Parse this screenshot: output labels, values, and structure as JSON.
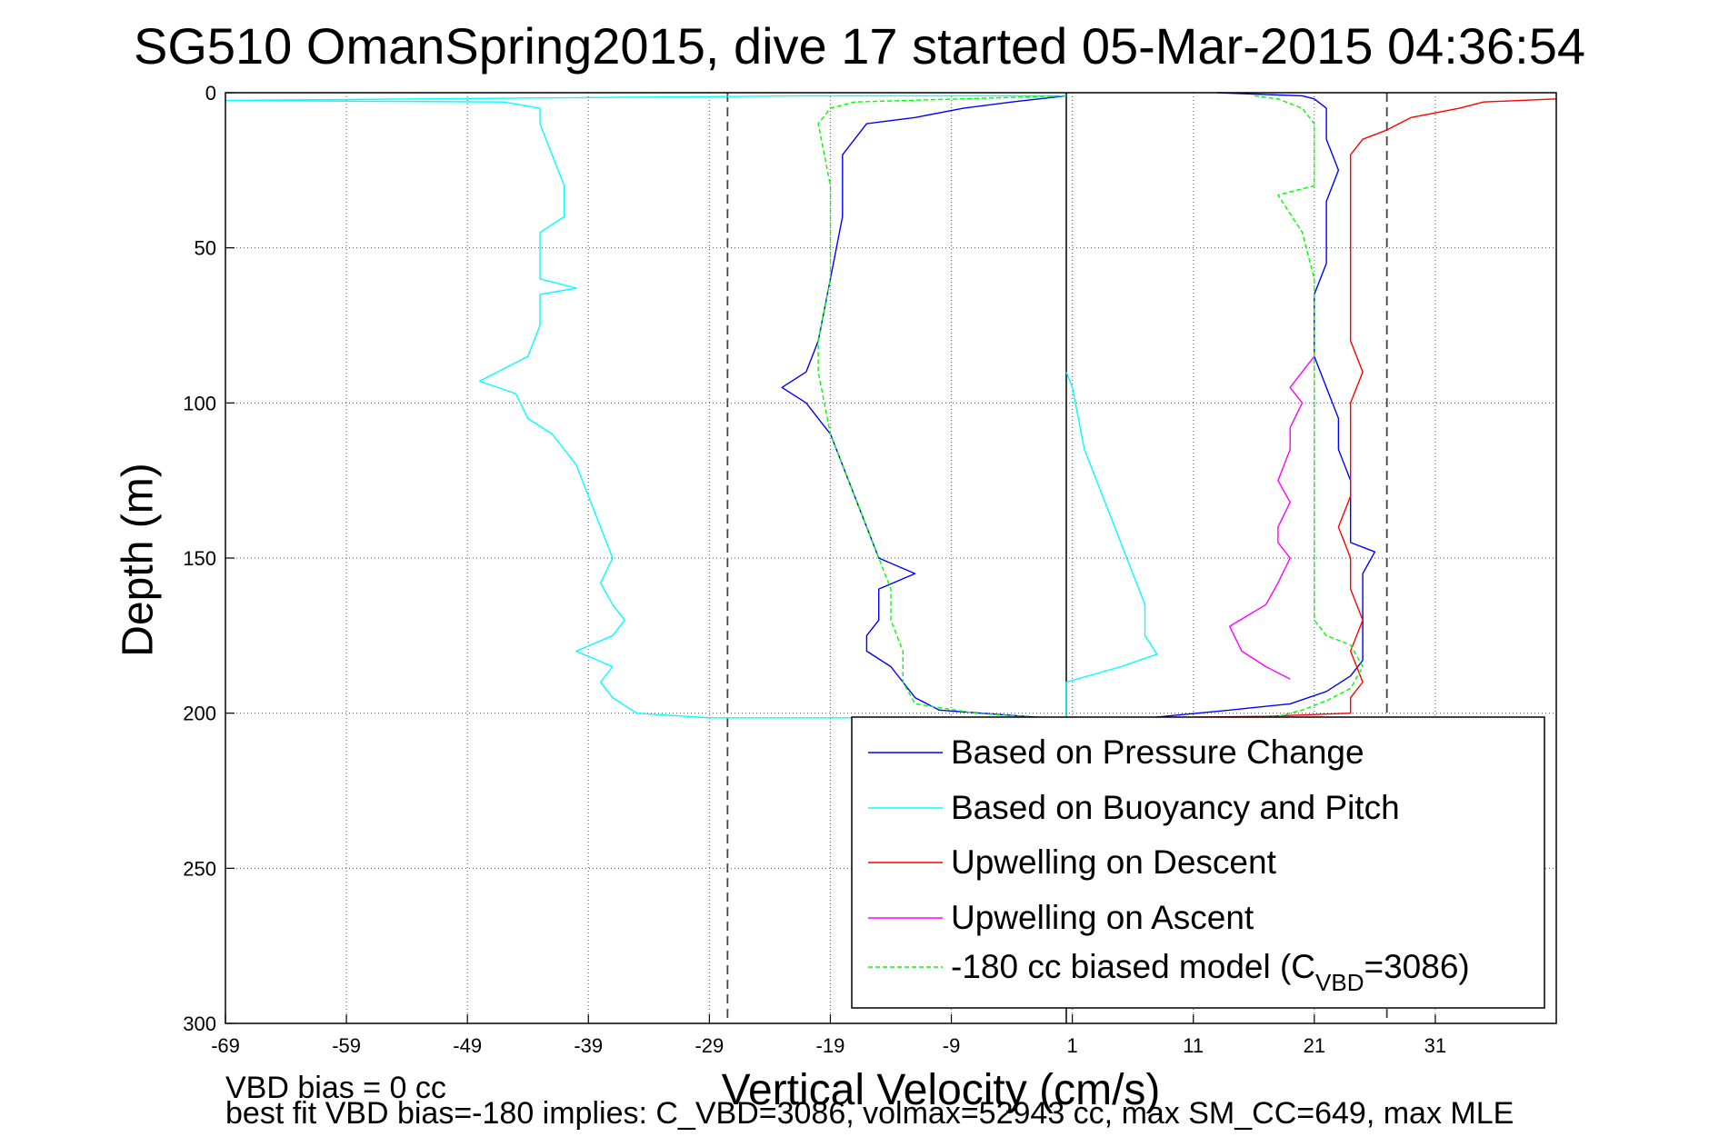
{
  "chart_data": {
    "type": "line",
    "title": "SG510 OmanSpring2015, dive 17 started 05-Mar-2015 04:36:54",
    "xlabel": "Vertical Velocity (cm/s)",
    "ylabel": "Depth (m)",
    "xlim": [
      -69,
      41
    ],
    "ylim": [
      300,
      0
    ],
    "y_reversed": true,
    "grid": true,
    "legend_position": "bottom-right",
    "x_ticks": [
      -69,
      -59,
      -49,
      -39,
      -29,
      -19,
      -9,
      1,
      11,
      21,
      31
    ],
    "y_ticks": [
      0,
      50,
      100,
      150,
      200,
      250,
      300
    ],
    "x_tick_labels": [
      "-69",
      "-59",
      "-49",
      "-39",
      "-29",
      "-19",
      "-9",
      "1",
      "11",
      "21",
      "31"
    ],
    "y_tick_labels": [
      "0",
      "50",
      "100",
      "150",
      "200",
      "250",
      "300"
    ],
    "reference_lines": {
      "vertical_solid_x": 0.5,
      "vertical_dashed_x": [
        -27.5,
        27
      ]
    },
    "series": [
      {
        "name": "Based on Pressure Change",
        "color": "#0000ff",
        "style": "solid",
        "points": [
          [
            0.5,
            1
          ],
          [
            -4,
            3
          ],
          [
            -8,
            5
          ],
          [
            -12,
            8
          ],
          [
            -16,
            10
          ],
          [
            -17,
            15
          ],
          [
            -18,
            20
          ],
          [
            -18,
            30
          ],
          [
            -18,
            40
          ],
          [
            -18.5,
            50
          ],
          [
            -19,
            60
          ],
          [
            -19.5,
            70
          ],
          [
            -20,
            80
          ],
          [
            -21,
            90
          ],
          [
            -23,
            95
          ],
          [
            -21,
            100
          ],
          [
            -20,
            105
          ],
          [
            -19,
            110
          ],
          [
            -18,
            120
          ],
          [
            -17,
            130
          ],
          [
            -16,
            140
          ],
          [
            -15,
            150
          ],
          [
            -12,
            155
          ],
          [
            -15,
            160
          ],
          [
            -15,
            170
          ],
          [
            -16,
            175
          ],
          [
            -16,
            180
          ],
          [
            -14,
            185
          ],
          [
            -13,
            190
          ],
          [
            -12,
            195
          ],
          [
            -10,
            199
          ],
          [
            -3,
            201
          ],
          [
            0.5,
            202
          ],
          [
            6,
            202
          ],
          [
            14,
            199
          ],
          [
            19,
            197
          ],
          [
            22,
            193
          ],
          [
            24,
            188
          ],
          [
            25,
            183
          ],
          [
            25,
            175
          ],
          [
            25,
            165
          ],
          [
            25,
            155
          ],
          [
            26,
            148
          ],
          [
            24,
            145
          ],
          [
            24,
            135
          ],
          [
            24,
            125
          ],
          [
            23,
            115
          ],
          [
            23,
            105
          ],
          [
            22,
            95
          ],
          [
            21,
            85
          ],
          [
            21,
            75
          ],
          [
            21,
            65
          ],
          [
            22,
            55
          ],
          [
            22,
            45
          ],
          [
            22,
            35
          ],
          [
            23,
            25
          ],
          [
            22,
            15
          ],
          [
            22,
            5
          ],
          [
            21,
            2
          ],
          [
            20,
            1
          ],
          [
            15,
            0.3
          ],
          [
            13,
            0
          ]
        ]
      },
      {
        "name": "Based on Buoyancy and Pitch",
        "color": "#00ffff",
        "style": "solid",
        "points": [
          [
            0.5,
            1
          ],
          [
            -20,
            1
          ],
          [
            -69,
            2.5
          ],
          [
            -46,
            3
          ],
          [
            -43,
            5
          ],
          [
            -43,
            10
          ],
          [
            -42,
            20
          ],
          [
            -41,
            30
          ],
          [
            -41,
            40
          ],
          [
            -43,
            45
          ],
          [
            -43,
            55
          ],
          [
            -43,
            60
          ],
          [
            -40,
            63
          ],
          [
            -43,
            65
          ],
          [
            -43,
            75
          ],
          [
            -44,
            85
          ],
          [
            -48,
            93
          ],
          [
            -45,
            97
          ],
          [
            -44,
            105
          ],
          [
            -42,
            110
          ],
          [
            -41,
            115
          ],
          [
            -40,
            120
          ],
          [
            -39,
            130
          ],
          [
            -38,
            140
          ],
          [
            -37,
            150
          ],
          [
            -38,
            158
          ],
          [
            -37,
            165
          ],
          [
            -36,
            170
          ],
          [
            -37,
            175
          ],
          [
            -40,
            180
          ],
          [
            -37,
            185
          ],
          [
            -38,
            190
          ],
          [
            -37,
            195
          ],
          [
            -35,
            200
          ],
          [
            -29,
            201.5
          ],
          [
            0.5,
            201.5
          ],
          [
            0.5,
            190
          ],
          [
            5,
            185
          ],
          [
            8,
            181
          ],
          [
            7,
            175
          ],
          [
            7,
            165
          ],
          [
            6,
            155
          ],
          [
            5,
            145
          ],
          [
            4,
            135
          ],
          [
            3,
            125
          ],
          [
            2,
            115
          ],
          [
            1.5,
            105
          ],
          [
            1,
            95
          ],
          [
            0.5,
            90
          ]
        ]
      },
      {
        "name": "Upwelling on Descent",
        "color": "#ff0000",
        "style": "solid",
        "points": [
          [
            41,
            2
          ],
          [
            35,
            3
          ],
          [
            33,
            5
          ],
          [
            29,
            8
          ],
          [
            27,
            12
          ],
          [
            25,
            15
          ],
          [
            24,
            20
          ],
          [
            24,
            30
          ],
          [
            24,
            40
          ],
          [
            24,
            50
          ],
          [
            24,
            60
          ],
          [
            24,
            70
          ],
          [
            24,
            80
          ],
          [
            25,
            90
          ],
          [
            24,
            100
          ],
          [
            24,
            110
          ],
          [
            24,
            120
          ],
          [
            24,
            130
          ],
          [
            23,
            140
          ],
          [
            24,
            150
          ],
          [
            24,
            160
          ],
          [
            25,
            170
          ],
          [
            24,
            180
          ],
          [
            25,
            190
          ],
          [
            24,
            195
          ],
          [
            24,
            200
          ],
          [
            17,
            201
          ],
          [
            7,
            201.5
          ]
        ]
      },
      {
        "name": "Upwelling on Ascent",
        "color": "#ff00ff",
        "style": "solid",
        "points": [
          [
            19,
            189
          ],
          [
            17,
            185
          ],
          [
            15,
            180
          ],
          [
            14,
            172
          ],
          [
            17,
            165
          ],
          [
            18,
            158
          ],
          [
            19,
            150
          ],
          [
            18,
            145
          ],
          [
            18,
            140
          ],
          [
            19,
            132
          ],
          [
            18,
            125
          ],
          [
            19,
            115
          ],
          [
            19,
            108
          ],
          [
            20,
            100
          ],
          [
            19,
            95
          ],
          [
            20,
            90
          ],
          [
            21,
            85
          ]
        ]
      },
      {
        "name": "-180 cc biased model (C_VBD=3086)",
        "color": "#00ff00",
        "style": "dashed",
        "points": [
          [
            0.5,
            1
          ],
          [
            -17,
            3
          ],
          [
            -19,
            5
          ],
          [
            -20,
            10
          ],
          [
            -19.5,
            20
          ],
          [
            -19,
            30
          ],
          [
            -19,
            40
          ],
          [
            -19,
            50
          ],
          [
            -19,
            60
          ],
          [
            -19.5,
            70
          ],
          [
            -20,
            80
          ],
          [
            -20,
            90
          ],
          [
            -19.5,
            100
          ],
          [
            -19,
            110
          ],
          [
            -18,
            120
          ],
          [
            -17,
            130
          ],
          [
            -16,
            140
          ],
          [
            -15,
            150
          ],
          [
            -14,
            160
          ],
          [
            -14,
            170
          ],
          [
            -13,
            180
          ],
          [
            -13,
            190
          ],
          [
            -12,
            197
          ],
          [
            -7,
            200
          ],
          [
            0.5,
            202
          ],
          [
            12,
            202
          ],
          [
            18,
            201
          ],
          [
            20,
            199
          ],
          [
            22,
            196
          ],
          [
            24,
            192
          ],
          [
            25,
            185
          ],
          [
            24,
            178
          ],
          [
            22,
            175
          ],
          [
            21,
            170
          ],
          [
            21,
            150
          ],
          [
            21,
            120
          ],
          [
            21,
            100
          ],
          [
            21,
            80
          ],
          [
            21,
            60
          ],
          [
            20,
            45
          ],
          [
            18,
            33
          ],
          [
            21,
            30
          ],
          [
            21,
            20
          ],
          [
            21,
            10
          ],
          [
            20,
            5
          ],
          [
            18,
            2
          ],
          [
            16,
            1
          ]
        ]
      }
    ],
    "legend_entries": [
      "Based on Pressure Change",
      "Based on Buoyancy and Pitch",
      "Upwelling on Descent",
      "Upwelling on Ascent"
    ],
    "legend_last_entry": {
      "prefix": "-180 cc biased model (C",
      "subscript": "VBD",
      "suffix": "=3086)"
    }
  },
  "annotations": {
    "vbd_bias": "VBD bias = 0 cc",
    "best_fit": "best fit VBD bias=-180 implies: C_VBD=3086, volmax=52943 cc, max SM_CC=649, max MLE"
  }
}
